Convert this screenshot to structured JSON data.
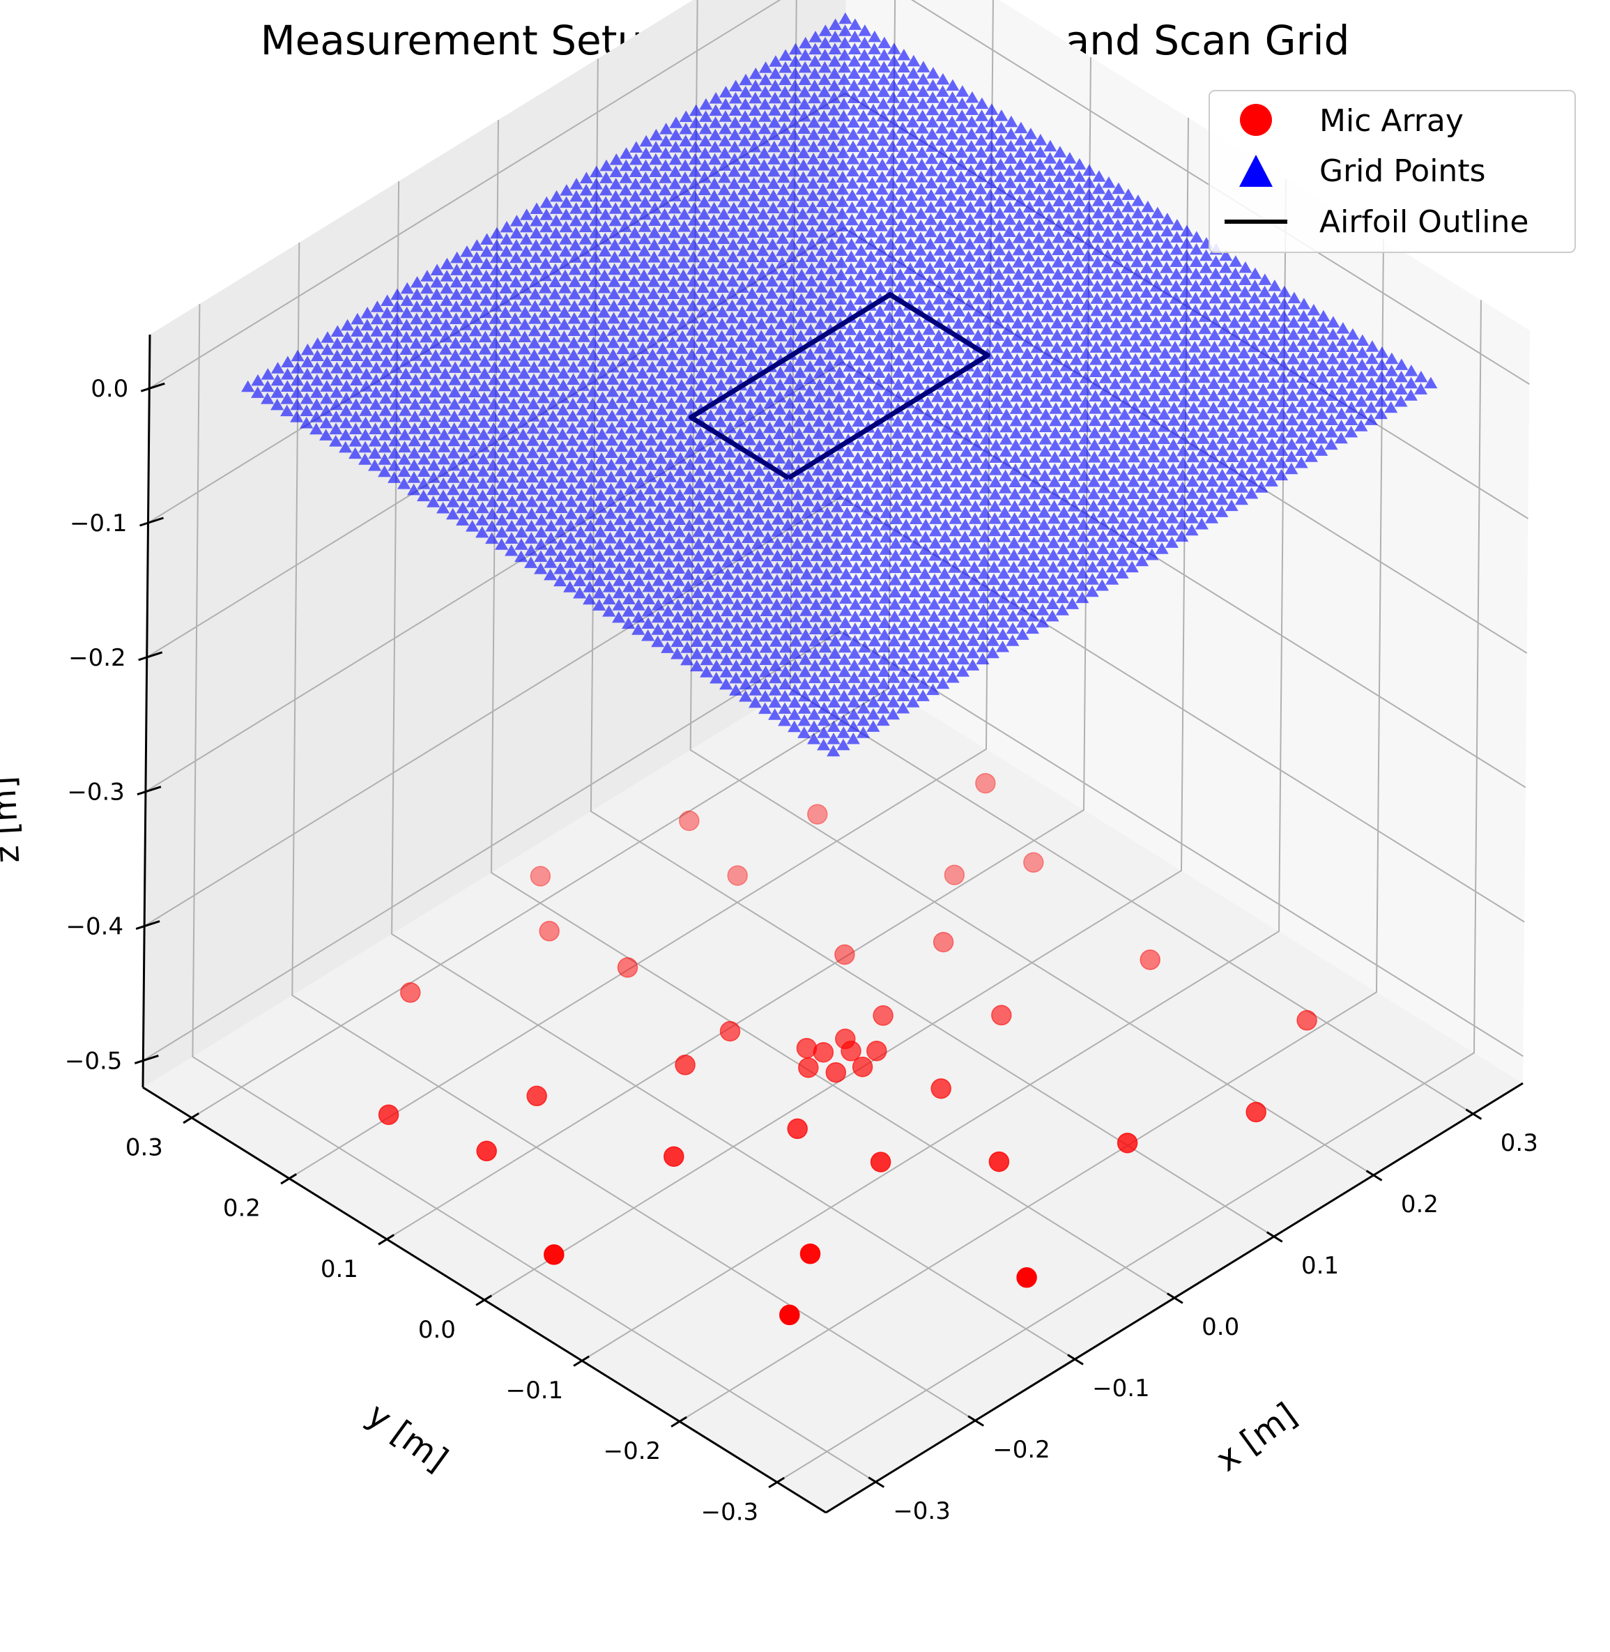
{
  "chart_data": {
    "type": "scatter",
    "title": "Measurement Setup: Microphone Array and Scan Grid",
    "xlabel": "x [m]",
    "ylabel": "y [m]",
    "zlabel": "z [m]",
    "xlim": [
      -0.35,
      0.35
    ],
    "ylim": [
      -0.35,
      0.35
    ],
    "zlim": [
      -0.52,
      0.04
    ],
    "xticks": [
      -0.3,
      -0.2,
      -0.1,
      0.0,
      0.1,
      0.2,
      0.3
    ],
    "yticks": [
      -0.3,
      -0.2,
      -0.1,
      0.0,
      0.1,
      0.2,
      0.3
    ],
    "zticks": [
      -0.5,
      -0.4,
      -0.3,
      -0.2,
      -0.1,
      0.0
    ],
    "xtick_labels": [
      "−0.3",
      "−0.2",
      "−0.1",
      "0.0",
      "0.1",
      "0.2",
      "0.3"
    ],
    "ytick_labels": [
      "−0.3",
      "−0.2",
      "−0.1",
      "0.0",
      "0.1",
      "0.2",
      "0.3"
    ],
    "ztick_labels": [
      "−0.5",
      "−0.4",
      "−0.3",
      "−0.2",
      "−0.1",
      "0.0"
    ],
    "grid": true,
    "legend_position": "top-right",
    "colors": {
      "mic": "#ff0000",
      "grid_points": "#0000ff",
      "airfoil": "#000000"
    },
    "series": [
      {
        "name": "Mic Array",
        "marker": "circle",
        "z": -0.5,
        "points": [
          [
            0.0,
            0.01
          ],
          [
            0.015,
            -0.003
          ],
          [
            -0.01,
            -0.013
          ],
          [
            0.008,
            -0.022
          ],
          [
            -0.02,
            0.005
          ],
          [
            0.022,
            0.01
          ],
          [
            -0.005,
            0.022
          ],
          [
            0.028,
            -0.016
          ],
          [
            0.06,
            0.01
          ],
          [
            -0.03,
            0.075
          ],
          [
            -0.075,
            -0.04
          ],
          [
            0.03,
            -0.08
          ],
          [
            0.09,
            0.08
          ],
          [
            -0.08,
            0.07
          ],
          [
            -0.06,
            -0.11
          ],
          [
            0.12,
            -0.05
          ],
          [
            0.15,
            0.04
          ],
          [
            -0.03,
            0.18
          ],
          [
            -0.16,
            0.0
          ],
          [
            0.0,
            -0.17
          ],
          [
            0.21,
            0.09
          ],
          [
            0.1,
            0.2
          ],
          [
            -0.18,
            0.12
          ],
          [
            -0.17,
            -0.15
          ],
          [
            0.08,
            -0.22
          ],
          [
            0.24,
            -0.08
          ],
          [
            0.26,
            0.06
          ],
          [
            0.19,
            0.21
          ],
          [
            -0.04,
            0.25
          ],
          [
            -0.25,
            0.1
          ],
          [
            -0.23,
            -0.19
          ],
          [
            -0.08,
            -0.28
          ],
          [
            0.17,
            -0.26
          ],
          [
            0.27,
            -0.21
          ],
          [
            0.12,
            0.27
          ],
          [
            -0.27,
            0.18
          ],
          [
            0.0,
            0.3
          ],
          [
            -0.3,
            -0.02
          ],
          [
            -0.16,
            0.27
          ],
          [
            0.3,
            0.15
          ]
        ]
      },
      {
        "name": "Grid Points",
        "marker": "triangle",
        "z": 0.0,
        "x_range": [
          -0.3,
          0.3
        ],
        "y_range": [
          -0.3,
          0.3
        ],
        "resolution": 61
      },
      {
        "name": "Airfoil Outline",
        "marker": "line",
        "z": 0.0,
        "points": [
          [
            -0.1,
            -0.05
          ],
          [
            0.1,
            -0.05
          ],
          [
            0.1,
            0.05
          ],
          [
            -0.1,
            0.05
          ],
          [
            -0.1,
            -0.05
          ]
        ]
      }
    ]
  }
}
